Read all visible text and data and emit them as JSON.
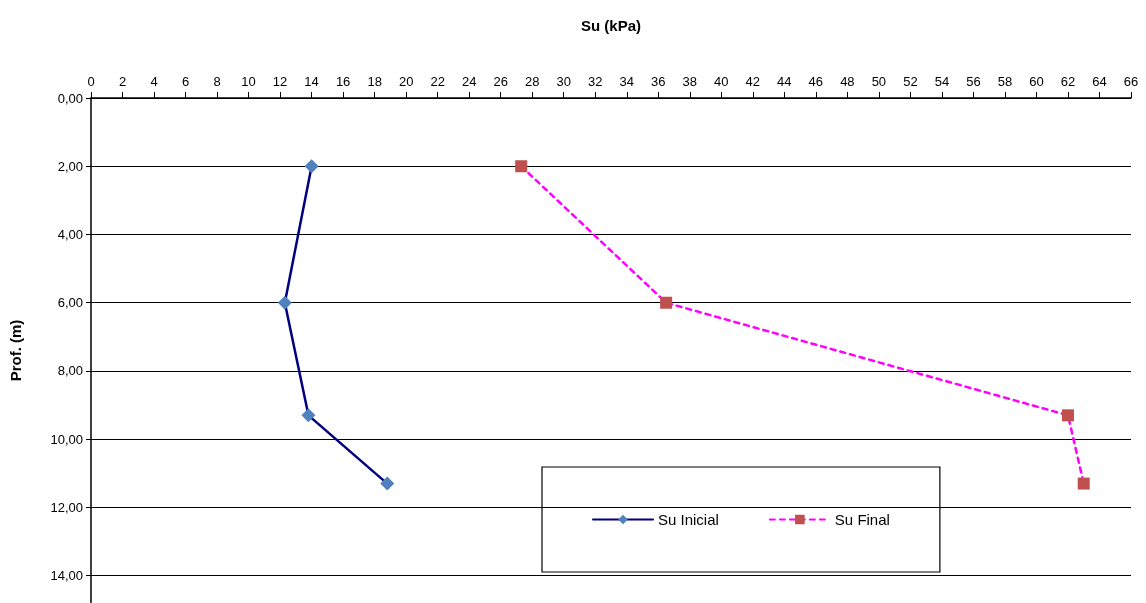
{
  "chart_data": {
    "type": "line",
    "xlabel": "Su (kPa)",
    "ylabel": "Prof. (m)",
    "xlim": [
      0,
      66
    ],
    "xticks": [
      0,
      2,
      4,
      6,
      8,
      10,
      12,
      14,
      16,
      18,
      20,
      22,
      24,
      26,
      28,
      30,
      32,
      34,
      36,
      38,
      40,
      42,
      44,
      46,
      48,
      50,
      52,
      54,
      56,
      58,
      60,
      62,
      64,
      66
    ],
    "ylim": [
      14.8,
      0
    ],
    "yticks": [
      {
        "value": 0,
        "label": "0,00"
      },
      {
        "value": 2,
        "label": "2,00"
      },
      {
        "value": 4,
        "label": "4,00"
      },
      {
        "value": 6,
        "label": "6,00"
      },
      {
        "value": 8,
        "label": "8,00"
      },
      {
        "value": 10,
        "label": "10,00"
      },
      {
        "value": 12,
        "label": "12,00"
      },
      {
        "value": 14,
        "label": "14,00"
      }
    ],
    "grid": "y",
    "legend": "bottom right",
    "series": [
      {
        "name": "Su Inicial",
        "color": "#000080",
        "colors": [
          "#4f81bd",
          "#4f81bd",
          "#4f81bd",
          "#4f81bd"
        ],
        "marker": "diamond",
        "line_style": "solid",
        "x": [
          14,
          12.3,
          13.8,
          18.8
        ],
        "values": [
          2,
          6,
          9.3,
          11.3
        ]
      },
      {
        "name": "Su Final",
        "color": "#ff00ff",
        "colors": [
          "#c0504d",
          "#c0504d",
          "#c0504d",
          "#c0504d"
        ],
        "marker": "square",
        "line_style": "dashed",
        "x": [
          27.3,
          36.5,
          62,
          63
        ],
        "values": [
          2,
          6,
          9.3,
          11.3
        ]
      }
    ]
  }
}
